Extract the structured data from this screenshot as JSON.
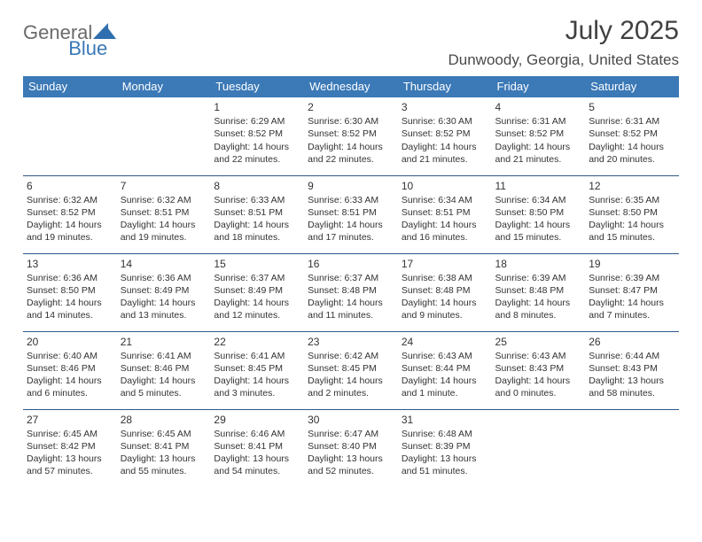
{
  "brand": {
    "general": "General",
    "blue": "Blue"
  },
  "title": "July 2025",
  "location": "Dunwoody, Georgia, United States",
  "colors": {
    "header_bg": "#3b79b7",
    "header_text": "#ffffff",
    "row_border": "#2f5a88",
    "body_text": "#333333",
    "title_text": "#404040",
    "logo_gray": "#6a6a6a",
    "logo_blue": "#3b79b7",
    "page_bg": "#ffffff"
  },
  "typography": {
    "title_fontsize": 30,
    "location_fontsize": 17,
    "dayheader_fontsize": 13,
    "daynum_fontsize": 12,
    "cell_fontsize": 10.5
  },
  "day_headers": [
    "Sunday",
    "Monday",
    "Tuesday",
    "Wednesday",
    "Thursday",
    "Friday",
    "Saturday"
  ],
  "weeks": [
    [
      null,
      null,
      {
        "n": "1",
        "sr": "Sunrise: 6:29 AM",
        "ss": "Sunset: 8:52 PM",
        "d1": "Daylight: 14 hours",
        "d2": "and 22 minutes."
      },
      {
        "n": "2",
        "sr": "Sunrise: 6:30 AM",
        "ss": "Sunset: 8:52 PM",
        "d1": "Daylight: 14 hours",
        "d2": "and 22 minutes."
      },
      {
        "n": "3",
        "sr": "Sunrise: 6:30 AM",
        "ss": "Sunset: 8:52 PM",
        "d1": "Daylight: 14 hours",
        "d2": "and 21 minutes."
      },
      {
        "n": "4",
        "sr": "Sunrise: 6:31 AM",
        "ss": "Sunset: 8:52 PM",
        "d1": "Daylight: 14 hours",
        "d2": "and 21 minutes."
      },
      {
        "n": "5",
        "sr": "Sunrise: 6:31 AM",
        "ss": "Sunset: 8:52 PM",
        "d1": "Daylight: 14 hours",
        "d2": "and 20 minutes."
      }
    ],
    [
      {
        "n": "6",
        "sr": "Sunrise: 6:32 AM",
        "ss": "Sunset: 8:52 PM",
        "d1": "Daylight: 14 hours",
        "d2": "and 19 minutes."
      },
      {
        "n": "7",
        "sr": "Sunrise: 6:32 AM",
        "ss": "Sunset: 8:51 PM",
        "d1": "Daylight: 14 hours",
        "d2": "and 19 minutes."
      },
      {
        "n": "8",
        "sr": "Sunrise: 6:33 AM",
        "ss": "Sunset: 8:51 PM",
        "d1": "Daylight: 14 hours",
        "d2": "and 18 minutes."
      },
      {
        "n": "9",
        "sr": "Sunrise: 6:33 AM",
        "ss": "Sunset: 8:51 PM",
        "d1": "Daylight: 14 hours",
        "d2": "and 17 minutes."
      },
      {
        "n": "10",
        "sr": "Sunrise: 6:34 AM",
        "ss": "Sunset: 8:51 PM",
        "d1": "Daylight: 14 hours",
        "d2": "and 16 minutes."
      },
      {
        "n": "11",
        "sr": "Sunrise: 6:34 AM",
        "ss": "Sunset: 8:50 PM",
        "d1": "Daylight: 14 hours",
        "d2": "and 15 minutes."
      },
      {
        "n": "12",
        "sr": "Sunrise: 6:35 AM",
        "ss": "Sunset: 8:50 PM",
        "d1": "Daylight: 14 hours",
        "d2": "and 15 minutes."
      }
    ],
    [
      {
        "n": "13",
        "sr": "Sunrise: 6:36 AM",
        "ss": "Sunset: 8:50 PM",
        "d1": "Daylight: 14 hours",
        "d2": "and 14 minutes."
      },
      {
        "n": "14",
        "sr": "Sunrise: 6:36 AM",
        "ss": "Sunset: 8:49 PM",
        "d1": "Daylight: 14 hours",
        "d2": "and 13 minutes."
      },
      {
        "n": "15",
        "sr": "Sunrise: 6:37 AM",
        "ss": "Sunset: 8:49 PM",
        "d1": "Daylight: 14 hours",
        "d2": "and 12 minutes."
      },
      {
        "n": "16",
        "sr": "Sunrise: 6:37 AM",
        "ss": "Sunset: 8:48 PM",
        "d1": "Daylight: 14 hours",
        "d2": "and 11 minutes."
      },
      {
        "n": "17",
        "sr": "Sunrise: 6:38 AM",
        "ss": "Sunset: 8:48 PM",
        "d1": "Daylight: 14 hours",
        "d2": "and 9 minutes."
      },
      {
        "n": "18",
        "sr": "Sunrise: 6:39 AM",
        "ss": "Sunset: 8:48 PM",
        "d1": "Daylight: 14 hours",
        "d2": "and 8 minutes."
      },
      {
        "n": "19",
        "sr": "Sunrise: 6:39 AM",
        "ss": "Sunset: 8:47 PM",
        "d1": "Daylight: 14 hours",
        "d2": "and 7 minutes."
      }
    ],
    [
      {
        "n": "20",
        "sr": "Sunrise: 6:40 AM",
        "ss": "Sunset: 8:46 PM",
        "d1": "Daylight: 14 hours",
        "d2": "and 6 minutes."
      },
      {
        "n": "21",
        "sr": "Sunrise: 6:41 AM",
        "ss": "Sunset: 8:46 PM",
        "d1": "Daylight: 14 hours",
        "d2": "and 5 minutes."
      },
      {
        "n": "22",
        "sr": "Sunrise: 6:41 AM",
        "ss": "Sunset: 8:45 PM",
        "d1": "Daylight: 14 hours",
        "d2": "and 3 minutes."
      },
      {
        "n": "23",
        "sr": "Sunrise: 6:42 AM",
        "ss": "Sunset: 8:45 PM",
        "d1": "Daylight: 14 hours",
        "d2": "and 2 minutes."
      },
      {
        "n": "24",
        "sr": "Sunrise: 6:43 AM",
        "ss": "Sunset: 8:44 PM",
        "d1": "Daylight: 14 hours",
        "d2": "and 1 minute."
      },
      {
        "n": "25",
        "sr": "Sunrise: 6:43 AM",
        "ss": "Sunset: 8:43 PM",
        "d1": "Daylight: 14 hours",
        "d2": "and 0 minutes."
      },
      {
        "n": "26",
        "sr": "Sunrise: 6:44 AM",
        "ss": "Sunset: 8:43 PM",
        "d1": "Daylight: 13 hours",
        "d2": "and 58 minutes."
      }
    ],
    [
      {
        "n": "27",
        "sr": "Sunrise: 6:45 AM",
        "ss": "Sunset: 8:42 PM",
        "d1": "Daylight: 13 hours",
        "d2": "and 57 minutes."
      },
      {
        "n": "28",
        "sr": "Sunrise: 6:45 AM",
        "ss": "Sunset: 8:41 PM",
        "d1": "Daylight: 13 hours",
        "d2": "and 55 minutes."
      },
      {
        "n": "29",
        "sr": "Sunrise: 6:46 AM",
        "ss": "Sunset: 8:41 PM",
        "d1": "Daylight: 13 hours",
        "d2": "and 54 minutes."
      },
      {
        "n": "30",
        "sr": "Sunrise: 6:47 AM",
        "ss": "Sunset: 8:40 PM",
        "d1": "Daylight: 13 hours",
        "d2": "and 52 minutes."
      },
      {
        "n": "31",
        "sr": "Sunrise: 6:48 AM",
        "ss": "Sunset: 8:39 PM",
        "d1": "Daylight: 13 hours",
        "d2": "and 51 minutes."
      },
      null,
      null
    ]
  ]
}
